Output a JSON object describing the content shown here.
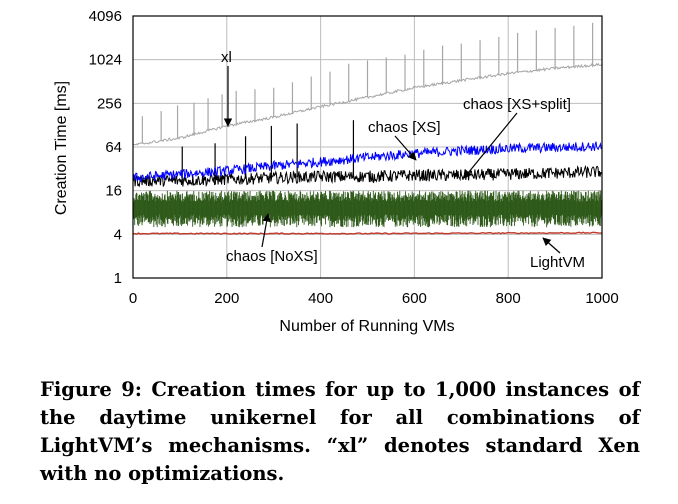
{
  "chart_data": {
    "type": "line",
    "xlabel": "Number of Running VMs",
    "ylabel": "Creation Time [ms]",
    "xlim": [
      0,
      1000
    ],
    "ylim": [
      1,
      4096
    ],
    "yscale": "log2",
    "xticks": [
      0,
      200,
      400,
      600,
      800,
      1000
    ],
    "yticks": [
      1,
      4,
      16,
      64,
      256,
      1024,
      4096
    ],
    "grid": true,
    "series": [
      {
        "name": "xl",
        "color": "#a6a6a6",
        "points": [
          [
            0,
            68
          ],
          [
            100,
            85
          ],
          [
            200,
            125
          ],
          [
            300,
            165
          ],
          [
            400,
            230
          ],
          [
            500,
            310
          ],
          [
            600,
            420
          ],
          [
            700,
            530
          ],
          [
            800,
            660
          ],
          [
            900,
            780
          ],
          [
            1000,
            880
          ]
        ],
        "spikes": [
          [
            20,
            170
          ],
          [
            60,
            200
          ],
          [
            95,
            240
          ],
          [
            130,
            260
          ],
          [
            160,
            300
          ],
          [
            190,
            340
          ],
          [
            220,
            380
          ],
          [
            260,
            400
          ],
          [
            300,
            420
          ],
          [
            340,
            500
          ],
          [
            380,
            600
          ],
          [
            420,
            700
          ],
          [
            460,
            900
          ],
          [
            500,
            1000
          ],
          [
            540,
            1100
          ],
          [
            580,
            1200
          ],
          [
            620,
            1400
          ],
          [
            660,
            1600
          ],
          [
            700,
            1700
          ],
          [
            740,
            1900
          ],
          [
            780,
            2100
          ],
          [
            820,
            2400
          ],
          [
            860,
            2600
          ],
          [
            900,
            2800
          ],
          [
            940,
            3000
          ],
          [
            980,
            3300
          ]
        ]
      },
      {
        "name": "chaos [XS]",
        "color": "#0000ff",
        "points": [
          [
            0,
            24
          ],
          [
            100,
            27
          ],
          [
            200,
            30
          ],
          [
            300,
            35
          ],
          [
            400,
            40
          ],
          [
            500,
            46
          ],
          [
            600,
            52
          ],
          [
            700,
            57
          ],
          [
            800,
            61
          ],
          [
            900,
            63
          ],
          [
            1000,
            66
          ]
        ]
      },
      {
        "name": "chaos [XS+split]",
        "color": "#000000",
        "points": [
          [
            0,
            22
          ],
          [
            100,
            22
          ],
          [
            200,
            23
          ],
          [
            300,
            24
          ],
          [
            400,
            25
          ],
          [
            500,
            25
          ],
          [
            600,
            26
          ],
          [
            700,
            26
          ],
          [
            800,
            27
          ],
          [
            900,
            28
          ],
          [
            1000,
            29
          ]
        ],
        "spikes": [
          [
            105,
            65
          ],
          [
            175,
            72
          ],
          [
            240,
            90
          ],
          [
            295,
            125
          ],
          [
            350,
            135
          ],
          [
            470,
            150
          ]
        ]
      },
      {
        "name": "chaos [NoXS]",
        "color": "#2f5a1a",
        "points": [
          [
            0,
            10
          ],
          [
            1000,
            10
          ]
        ],
        "band": [
          5,
          16
        ]
      },
      {
        "name": "LightVM",
        "color": "#c0392b",
        "points": [
          [
            0,
            4.1
          ],
          [
            500,
            4.1
          ],
          [
            1000,
            4.2
          ]
        ]
      }
    ]
  },
  "annotations": {
    "xl": "xl",
    "chaos_xs": "chaos [XS]",
    "chaos_xs_split": "chaos [XS+split]",
    "chaos_noxs": "chaos [NoXS]",
    "lightvm": "LightVM"
  },
  "caption": "Figure 9: Creation times for up to 1,000 instances of the daytime unikernel for all combinations of LightVM’s mechanisms. “xl” denotes standard Xen with no optimizations."
}
